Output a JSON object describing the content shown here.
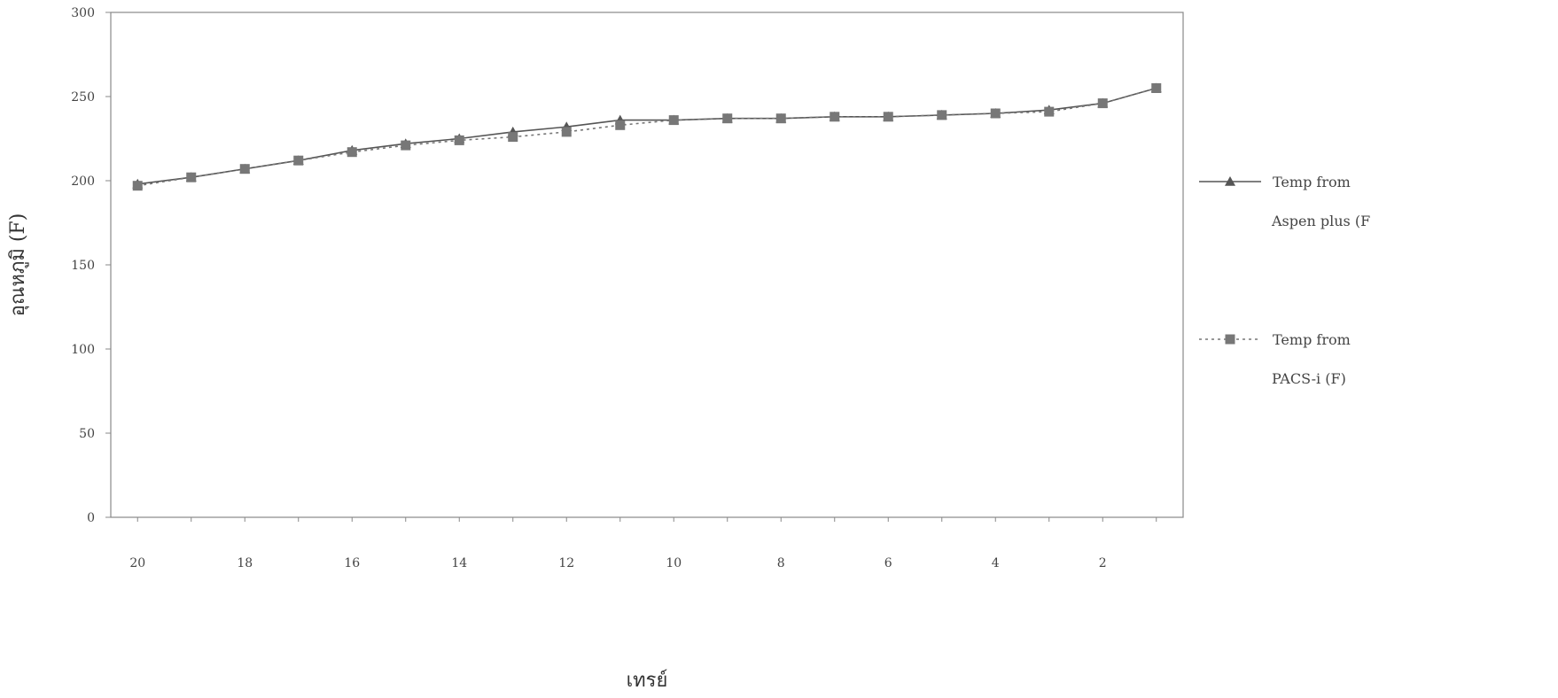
{
  "chart_data": {
    "type": "line",
    "xlabel": "เทรย์",
    "ylabel": "อุณหภูมิ (F)",
    "x": [
      20,
      19,
      18,
      17,
      16,
      15,
      14,
      13,
      12,
      11,
      10,
      9,
      8,
      7,
      6,
      5,
      4,
      3,
      2,
      1
    ],
    "x_ticks": [
      20,
      18,
      16,
      14,
      12,
      10,
      8,
      6,
      4,
      2
    ],
    "y_ticks": [
      0,
      50,
      100,
      150,
      200,
      250,
      300
    ],
    "xlim": [
      20.5,
      0.5
    ],
    "ylim": [
      0,
      300
    ],
    "x_reversed": true,
    "grid": false,
    "legend_position": "right",
    "series": [
      {
        "name": [
          "Temp from",
          "Aspen plus (F"
        ],
        "marker": "triangle",
        "line_style": "solid",
        "color": "#555555",
        "values": [
          198,
          202,
          207,
          212,
          218,
          222,
          225,
          229,
          232,
          236,
          236,
          237,
          237,
          238,
          238,
          239,
          240,
          242,
          246,
          255
        ]
      },
      {
        "name": [
          "Temp from",
          "PACS-i (F)"
        ],
        "marker": "square",
        "line_style": "dotted",
        "color": "#777777",
        "values": [
          197,
          202,
          207,
          212,
          217,
          221,
          224,
          226,
          229,
          233,
          236,
          237,
          237,
          238,
          238,
          239,
          240,
          241,
          246,
          255
        ]
      }
    ]
  }
}
